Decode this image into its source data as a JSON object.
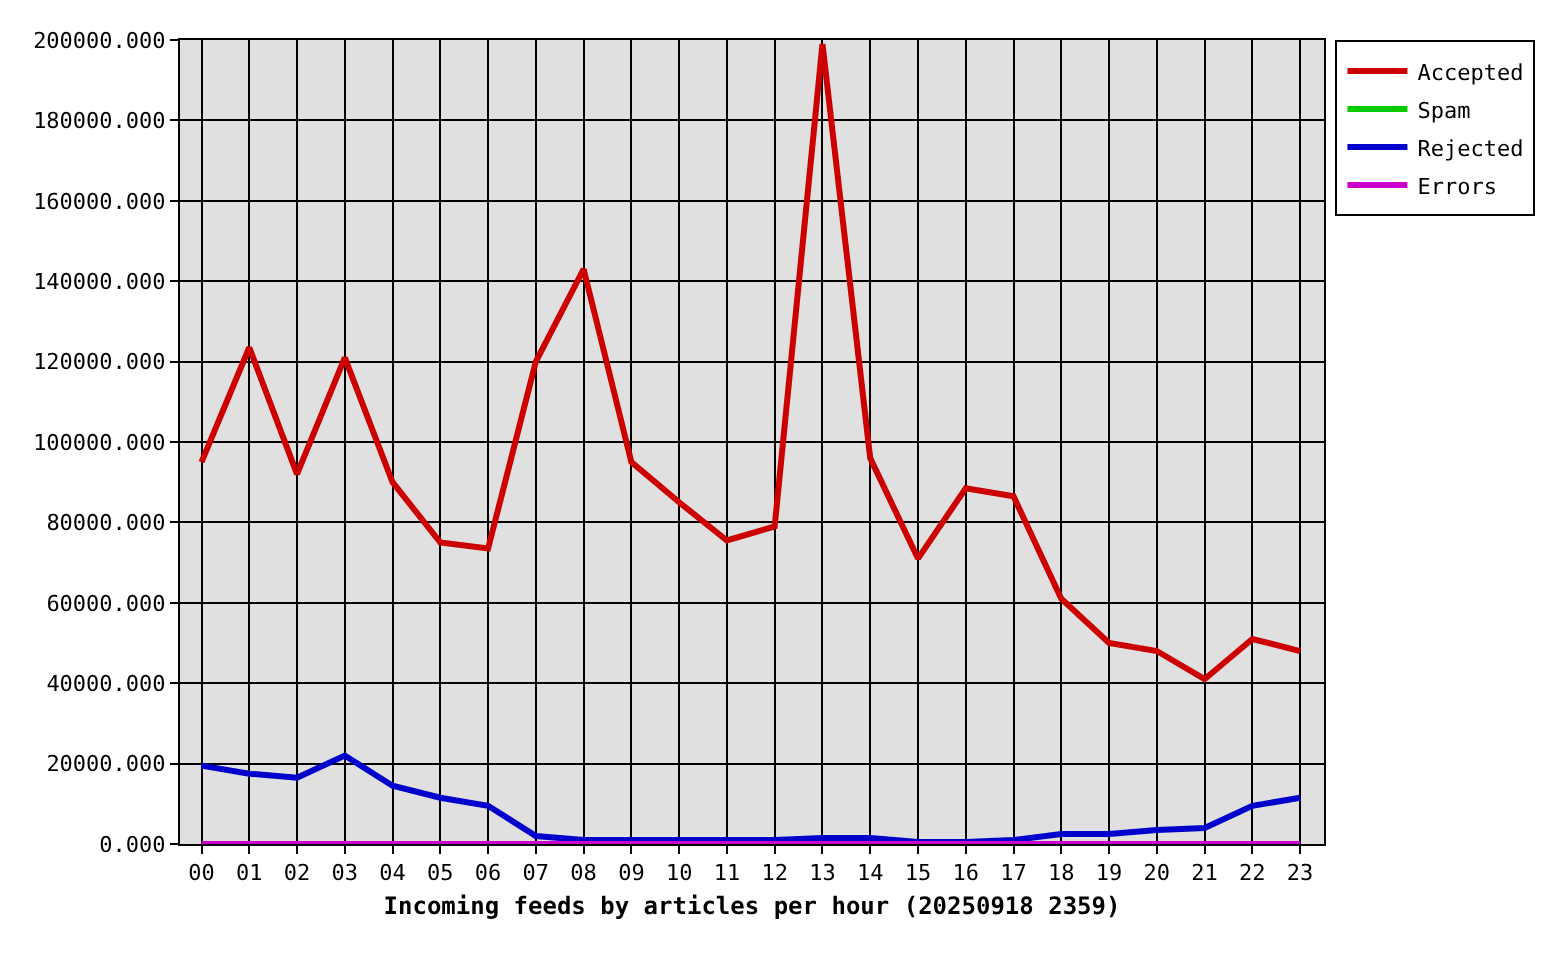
{
  "chart_data": {
    "type": "line",
    "xlabel": "Incoming feeds by articles per hour (20250918 2359)",
    "categories": [
      "00",
      "01",
      "02",
      "03",
      "04",
      "05",
      "06",
      "07",
      "08",
      "09",
      "10",
      "11",
      "12",
      "13",
      "14",
      "15",
      "16",
      "17",
      "18",
      "19",
      "20",
      "21",
      "22",
      "23"
    ],
    "series": [
      {
        "name": "Accepted",
        "color": "#cc0000",
        "values": [
          95000,
          123500,
          92000,
          121000,
          90000,
          75000,
          73500,
          120000,
          143000,
          95000,
          85000,
          75500,
          79000,
          199000,
          96000,
          71000,
          88500,
          86500,
          61000,
          50000,
          48000,
          41000,
          51000,
          48000
        ]
      },
      {
        "name": "Spam",
        "color": "#00cc00",
        "values": [
          null,
          null,
          null,
          null,
          null,
          null,
          null,
          null,
          null,
          null,
          null,
          null,
          null,
          null,
          null,
          null,
          null,
          null,
          null,
          null,
          null,
          null,
          null,
          null
        ]
      },
      {
        "name": "Rejected",
        "color": "#0000cc",
        "values": [
          19500,
          17500,
          16500,
          22000,
          14500,
          11500,
          9500,
          2000,
          1000,
          1000,
          1000,
          1000,
          1000,
          1500,
          1500,
          500,
          500,
          1000,
          2500,
          2500,
          3500,
          4000,
          9500,
          11500
        ]
      },
      {
        "name": "Errors",
        "color": "#cc00cc",
        "values": [
          0,
          0,
          0,
          0,
          0,
          0,
          0,
          0,
          0,
          0,
          0,
          0,
          0,
          0,
          0,
          0,
          0,
          0,
          0,
          0,
          0,
          0,
          0,
          0
        ]
      }
    ],
    "ylim": [
      0,
      200000
    ],
    "yticks": [
      {
        "value": 0,
        "label": "0.000"
      },
      {
        "value": 20000,
        "label": "20000.000"
      },
      {
        "value": 40000,
        "label": "40000.000"
      },
      {
        "value": 60000,
        "label": "60000.000"
      },
      {
        "value": 80000,
        "label": "80000.000"
      },
      {
        "value": 100000,
        "label": "100000.000"
      },
      {
        "value": 120000,
        "label": "120000.000"
      },
      {
        "value": 140000,
        "label": "140000.000"
      },
      {
        "value": 160000,
        "label": "160000.000"
      },
      {
        "value": 180000,
        "label": "180000.000"
      },
      {
        "value": 200000,
        "label": "200000.000"
      }
    ],
    "grid": true,
    "legend": "top right",
    "marker": "none",
    "line_style": "solid"
  }
}
